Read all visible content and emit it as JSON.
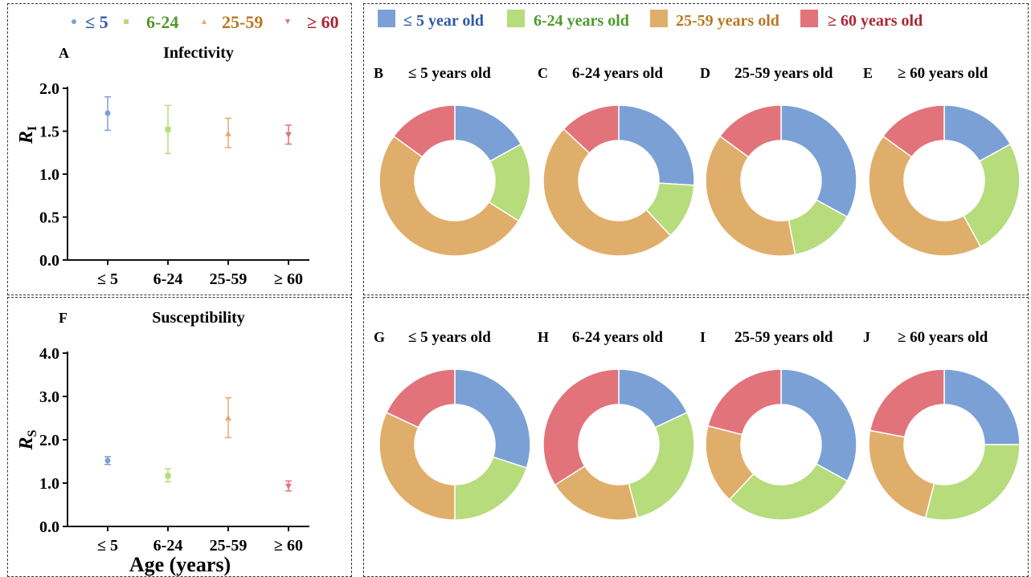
{
  "colors": {
    "le5": "#7ba0d6",
    "a6_24": "#b6dc7c",
    "a25_59": "#e0ae6b",
    "ge60": "#e2737a",
    "le5_dark": "#2f5aa8",
    "a6_24_dark": "#4f9a2c",
    "a25_59_dark": "#b87821",
    "ge60_dark": "#a82734"
  },
  "left_legend": [
    {
      "marker": "circle-icon",
      "label": "≤ 5",
      "key": "le5"
    },
    {
      "marker": "square-icon",
      "label": "6-24",
      "key": "a6_24"
    },
    {
      "marker": "triangle-up-icon",
      "label": "25-59",
      "key": "a25_59"
    },
    {
      "marker": "triangle-down-icon",
      "label": "≥ 60",
      "key": "ge60"
    }
  ],
  "right_legend": [
    {
      "label": "≤ 5 year old",
      "key": "le5"
    },
    {
      "label": "6-24 years old",
      "key": "a6_24"
    },
    {
      "label": "25-59 years old",
      "key": "a25_59"
    },
    {
      "label": "≥ 60 years old",
      "key": "ge60"
    }
  ],
  "x_axis_title": "Age (years)",
  "chart_data": [
    {
      "type": "scatter",
      "panel": "A",
      "title": "Infectivity",
      "ylabel_main": "R",
      "ylabel_sub": "I",
      "categories": [
        "≤ 5",
        "6-24",
        "25-59",
        "≥ 60"
      ],
      "markers": [
        "circle",
        "square",
        "triangle-up",
        "triangle-down"
      ],
      "values": [
        1.71,
        1.52,
        1.47,
        1.46
      ],
      "err_low": [
        1.51,
        1.24,
        1.31,
        1.35
      ],
      "err_high": [
        1.9,
        1.8,
        1.65,
        1.57
      ],
      "ylim": [
        0,
        2.0
      ],
      "yticks": [
        0,
        0.5,
        1.0,
        1.5,
        2.0
      ],
      "yticklabels": [
        "0.0",
        "0.5",
        "1.0",
        "1.5",
        "2.0"
      ]
    },
    {
      "type": "scatter",
      "panel": "F",
      "title": "Susceptibility",
      "ylabel_main": "R",
      "ylabel_sub": "S",
      "categories": [
        "≤ 5",
        "6-24",
        "25-59",
        "≥ 60"
      ],
      "markers": [
        "circle",
        "square",
        "triangle-up",
        "triangle-down"
      ],
      "values": [
        1.52,
        1.17,
        2.5,
        0.93
      ],
      "err_low": [
        1.43,
        1.03,
        2.05,
        0.82
      ],
      "err_high": [
        1.61,
        1.33,
        2.97,
        1.05
      ],
      "ylim": [
        0,
        4.0
      ],
      "yticks": [
        0,
        1.0,
        2.0,
        3.0,
        4.0
      ],
      "yticklabels": [
        "0.0",
        "1.0",
        "2.0",
        "3.0",
        "4.0"
      ]
    },
    {
      "type": "pie",
      "panel": "B",
      "title": "≤ 5 years old",
      "slices": [
        0.17,
        0.17,
        0.51,
        0.15
      ]
    },
    {
      "type": "pie",
      "panel": "C",
      "title": "6-24 years old",
      "slices": [
        0.26,
        0.12,
        0.49,
        0.13
      ]
    },
    {
      "type": "pie",
      "panel": "D",
      "title": "25-59 years old",
      "slices": [
        0.33,
        0.14,
        0.38,
        0.15
      ]
    },
    {
      "type": "pie",
      "panel": "E",
      "title": "≥ 60 years old",
      "slices": [
        0.17,
        0.25,
        0.43,
        0.15
      ]
    },
    {
      "type": "pie",
      "panel": "G",
      "title": "≤ 5 years old",
      "slices": [
        0.3,
        0.2,
        0.32,
        0.18
      ]
    },
    {
      "type": "pie",
      "panel": "H",
      "title": "6-24 years old",
      "slices": [
        0.18,
        0.28,
        0.2,
        0.34
      ]
    },
    {
      "type": "pie",
      "panel": "I",
      "title": "25-59 years old",
      "slices": [
        0.33,
        0.29,
        0.17,
        0.21
      ]
    },
    {
      "type": "pie",
      "panel": "J",
      "title": "≥ 60 years old",
      "slices": [
        0.25,
        0.29,
        0.24,
        0.22
      ]
    }
  ]
}
